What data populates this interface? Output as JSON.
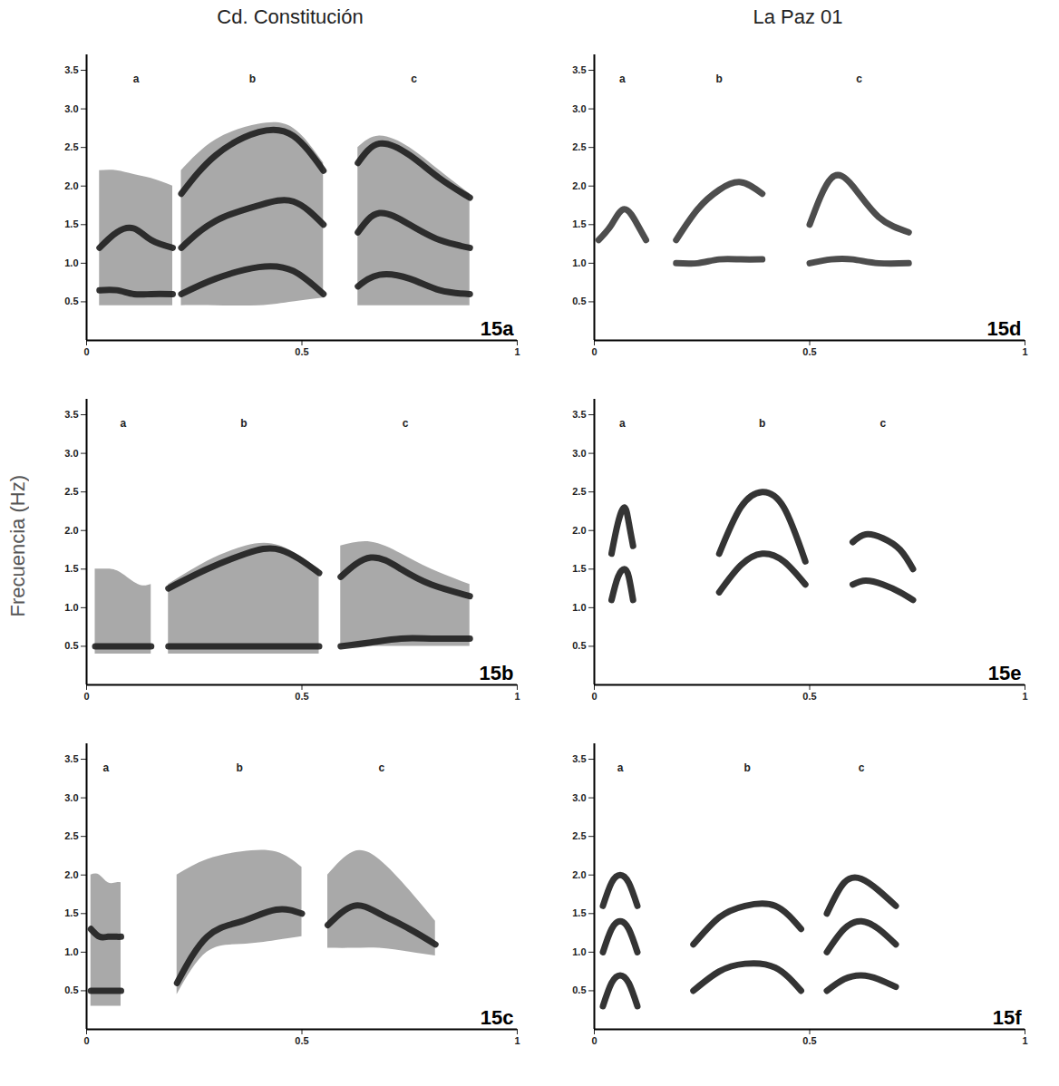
{
  "figure": {
    "column_titles": [
      "Cd. Constitución",
      "La Paz 01"
    ],
    "ylabel": "Frecuencia (Hz)"
  },
  "chart_data": [
    {
      "type": "spectrogram",
      "title": "15a",
      "color": "#1e1e1e",
      "xlim": [
        0,
        1
      ],
      "xticks": [
        0,
        0.5,
        1
      ],
      "ylim": [
        0,
        3.7
      ],
      "yticks": [
        0.5,
        {
          "value": 1,
          "label": "1.0"
        },
        1.5,
        {
          "value": 2,
          "label": "2.0"
        },
        2.5,
        {
          "value": 3,
          "label": "3.0"
        },
        3.5
      ],
      "syllables": [
        {
          "label": "a",
          "t": [
            0.03,
            0.07,
            0.11,
            0.15,
            0.2
          ],
          "low": [
            0.45,
            0.45,
            0.45,
            0.45,
            0.45
          ],
          "high": [
            2.2,
            2.2,
            2.15,
            2.1,
            2.0
          ],
          "bands": [
            [
              1.2,
              1.4,
              1.45,
              1.3,
              1.2
            ],
            [
              0.65,
              0.65,
              0.6,
              0.6,
              0.6
            ]
          ]
        },
        {
          "label": "b",
          "t": [
            0.22,
            0.3,
            0.4,
            0.48,
            0.55
          ],
          "low": [
            0.45,
            0.45,
            0.45,
            0.5,
            0.55
          ],
          "high": [
            2.2,
            2.6,
            2.8,
            2.75,
            2.3
          ],
          "bands": [
            [
              1.2,
              1.55,
              1.75,
              1.8,
              1.5
            ],
            [
              0.6,
              0.8,
              0.95,
              0.9,
              0.6
            ],
            [
              1.9,
              2.4,
              2.7,
              2.65,
              2.2
            ]
          ]
        },
        {
          "label": "c",
          "t": [
            0.63,
            0.68,
            0.75,
            0.82,
            0.89
          ],
          "low": [
            0.45,
            0.45,
            0.45,
            0.45,
            0.45
          ],
          "high": [
            2.5,
            2.65,
            2.5,
            2.2,
            1.9
          ],
          "bands": [
            [
              1.4,
              1.65,
              1.5,
              1.3,
              1.2
            ],
            [
              0.7,
              0.85,
              0.8,
              0.65,
              0.6
            ],
            [
              2.3,
              2.55,
              2.4,
              2.1,
              1.85
            ]
          ]
        }
      ]
    },
    {
      "type": "spectrogram",
      "title": "15b",
      "color": "#1e1e1e",
      "xlim": [
        0,
        1
      ],
      "xticks": [
        0,
        0.5,
        1
      ],
      "ylim": [
        0,
        3.7
      ],
      "yticks": [
        0.5,
        {
          "value": 1,
          "label": "1.0"
        },
        1.5,
        {
          "value": 2,
          "label": "2.0"
        },
        2.5,
        {
          "value": 3,
          "label": "3.0"
        },
        3.5
      ],
      "syllables": [
        {
          "label": "a",
          "t": [
            0.02,
            0.05,
            0.08,
            0.12,
            0.15
          ],
          "low": [
            0.4,
            0.4,
            0.4,
            0.4,
            0.4
          ],
          "high": [
            1.5,
            1.5,
            1.45,
            1.3,
            1.3
          ],
          "bands": [
            [
              0.5,
              0.5,
              0.5,
              0.5,
              0.5
            ]
          ]
        },
        {
          "label": "b",
          "t": [
            0.19,
            0.28,
            0.37,
            0.45,
            0.54
          ],
          "low": [
            0.4,
            0.4,
            0.4,
            0.4,
            0.4
          ],
          "high": [
            1.3,
            1.6,
            1.8,
            1.8,
            1.5
          ],
          "bands": [
            [
              1.25,
              1.5,
              1.7,
              1.75,
              1.45
            ],
            [
              0.5,
              0.5,
              0.5,
              0.5,
              0.5
            ]
          ]
        },
        {
          "label": "c",
          "t": [
            0.59,
            0.66,
            0.73,
            0.8,
            0.89
          ],
          "low": [
            0.5,
            0.5,
            0.5,
            0.5,
            0.5
          ],
          "high": [
            1.8,
            1.85,
            1.7,
            1.5,
            1.3
          ],
          "bands": [
            [
              1.4,
              1.65,
              1.5,
              1.3,
              1.15
            ],
            [
              0.5,
              0.55,
              0.6,
              0.6,
              0.6
            ]
          ]
        }
      ]
    },
    {
      "type": "spectrogram",
      "title": "15c",
      "color": "#1e1e1e",
      "xlim": [
        0,
        1
      ],
      "xticks": [
        0,
        0.5,
        1
      ],
      "ylim": [
        0,
        3.7
      ],
      "yticks": [
        0.5,
        {
          "value": 1,
          "label": "1.0"
        },
        1.5,
        {
          "value": 2,
          "label": "2.0"
        },
        2.5,
        {
          "value": 3,
          "label": "3.0"
        },
        3.5
      ],
      "syllables": [
        {
          "label": "a",
          "t": [
            0.01,
            0.03,
            0.05,
            0.07,
            0.08
          ],
          "low": [
            0.3,
            0.3,
            0.3,
            0.3,
            0.3
          ],
          "high": [
            2.0,
            2.0,
            1.9,
            1.9,
            1.9
          ],
          "bands": [
            [
              0.5,
              0.5,
              0.5,
              0.5,
              0.5
            ],
            [
              1.3,
              1.2,
              1.2,
              1.2,
              1.2
            ]
          ]
        },
        {
          "label": "b",
          "t": [
            0.21,
            0.28,
            0.36,
            0.44,
            0.5
          ],
          "low": [
            0.45,
            1.0,
            1.1,
            1.15,
            1.2
          ],
          "high": [
            2.0,
            2.2,
            2.3,
            2.3,
            2.1
          ],
          "bands": [
            [
              0.6,
              1.2,
              1.4,
              1.55,
              1.5
            ]
          ]
        },
        {
          "label": "c",
          "t": [
            0.56,
            0.62,
            0.68,
            0.75,
            0.81
          ],
          "low": [
            1.05,
            1.05,
            1.05,
            1.0,
            0.95
          ],
          "high": [
            2.0,
            2.3,
            2.2,
            1.8,
            1.4
          ],
          "bands": [
            [
              1.35,
              1.6,
              1.5,
              1.3,
              1.1
            ]
          ]
        }
      ]
    },
    {
      "type": "spectrogram",
      "title": "15d",
      "color": "#3a3a3a",
      "xlim": [
        0,
        1
      ],
      "xticks": [
        0,
        0.5,
        1
      ],
      "ylim": [
        0,
        3.7
      ],
      "yticks": [
        0.5,
        {
          "value": 1,
          "label": "1.0"
        },
        1.5,
        {
          "value": 2,
          "label": "2.0"
        },
        2.5,
        {
          "value": 3,
          "label": "3.0"
        },
        3.5
      ],
      "syllables": [
        {
          "label": "a",
          "t": [
            0.01,
            0.04,
            0.07,
            0.1,
            0.12
          ],
          "bands": [
            [
              1.3,
              1.5,
              1.7,
              1.5,
              1.3
            ]
          ]
        },
        {
          "label": "b",
          "t": [
            0.19,
            0.24,
            0.29,
            0.34,
            0.39
          ],
          "bands": [
            [
              1.3,
              1.7,
              1.95,
              2.05,
              1.9
            ],
            [
              1.0,
              1.0,
              1.05,
              1.05,
              1.05
            ]
          ]
        },
        {
          "label": "c",
          "t": [
            0.5,
            0.55,
            0.6,
            0.66,
            0.73
          ],
          "bands": [
            [
              1.5,
              2.1,
              2.0,
              1.6,
              1.4
            ],
            [
              1.0,
              1.05,
              1.05,
              1.0,
              1.0
            ]
          ]
        }
      ]
    },
    {
      "type": "spectrogram",
      "title": "15e",
      "color": "#1e1e1e",
      "xlim": [
        0,
        1
      ],
      "xticks": [
        0,
        0.5,
        1
      ],
      "ylim": [
        0,
        3.7
      ],
      "yticks": [
        0.5,
        {
          "value": 1,
          "label": "1.0"
        },
        1.5,
        {
          "value": 2,
          "label": "2.0"
        },
        2.5,
        {
          "value": 3,
          "label": "3.0"
        },
        3.5
      ],
      "syllables": [
        {
          "label": "a",
          "t": [
            0.04,
            0.055,
            0.07,
            0.08,
            0.09
          ],
          "bands": [
            [
              1.1,
              1.4,
              1.5,
              1.4,
              1.1
            ],
            [
              1.7,
              2.1,
              2.3,
              2.1,
              1.8
            ]
          ]
        },
        {
          "label": "b",
          "t": [
            0.29,
            0.34,
            0.39,
            0.44,
            0.49
          ],
          "bands": [
            [
              1.2,
              1.55,
              1.7,
              1.6,
              1.3
            ],
            [
              1.7,
              2.3,
              2.5,
              2.3,
              1.6
            ]
          ]
        },
        {
          "label": "c",
          "t": [
            0.6,
            0.63,
            0.67,
            0.71,
            0.74
          ],
          "bands": [
            [
              1.3,
              1.35,
              1.3,
              1.2,
              1.1
            ],
            [
              1.85,
              1.95,
              1.9,
              1.75,
              1.5
            ]
          ]
        }
      ]
    },
    {
      "type": "spectrogram",
      "title": "15f",
      "color": "#1e1e1e",
      "xlim": [
        0,
        1
      ],
      "xticks": [
        0,
        0.5,
        1
      ],
      "ylim": [
        0,
        3.7
      ],
      "yticks": [
        0.5,
        {
          "value": 1,
          "label": "1.0"
        },
        1.5,
        {
          "value": 2,
          "label": "2.0"
        },
        2.5,
        {
          "value": 3,
          "label": "3.0"
        },
        3.5
      ],
      "syllables": [
        {
          "label": "a",
          "t": [
            0.02,
            0.04,
            0.06,
            0.08,
            0.1
          ],
          "bands": [
            [
              0.3,
              0.6,
              0.7,
              0.6,
              0.3
            ],
            [
              1.0,
              1.3,
              1.4,
              1.3,
              1.0
            ],
            [
              1.6,
              1.9,
              2.0,
              1.9,
              1.6
            ]
          ]
        },
        {
          "label": "b",
          "t": [
            0.23,
            0.29,
            0.35,
            0.42,
            0.48
          ],
          "bands": [
            [
              1.1,
              1.45,
              1.6,
              1.6,
              1.3
            ],
            [
              0.5,
              0.75,
              0.85,
              0.8,
              0.5
            ]
          ]
        },
        {
          "label": "c",
          "t": [
            0.54,
            0.58,
            0.62,
            0.66,
            0.7
          ],
          "bands": [
            [
              1.5,
              1.9,
              1.95,
              1.8,
              1.6
            ],
            [
              1.0,
              1.3,
              1.4,
              1.3,
              1.1
            ],
            [
              0.5,
              0.65,
              0.7,
              0.65,
              0.55
            ]
          ]
        }
      ]
    }
  ]
}
